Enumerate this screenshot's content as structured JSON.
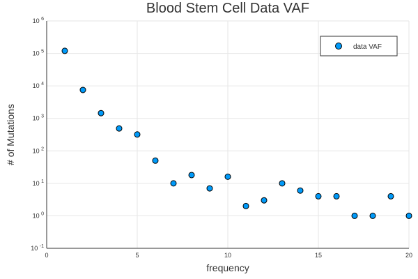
{
  "chart_data": {
    "type": "scatter",
    "title": "Blood Stem Cell Data VAF",
    "xlabel": "frequency",
    "ylabel": "# of Mutations",
    "xlim": [
      0,
      20
    ],
    "ylim": [
      0.1,
      1000000
    ],
    "yscale": "log",
    "grid": true,
    "legend_position": "top-right",
    "x_ticks": [
      "0",
      "5",
      "10",
      "15",
      "20"
    ],
    "y_ticks": [
      {
        "base": "10",
        "exp": "-1",
        "value": 0.1
      },
      {
        "base": "10",
        "exp": "0",
        "value": 1
      },
      {
        "base": "10",
        "exp": "1",
        "value": 10
      },
      {
        "base": "10",
        "exp": "2",
        "value": 100
      },
      {
        "base": "10",
        "exp": "3",
        "value": 1000
      },
      {
        "base": "10",
        "exp": "4",
        "value": 10000
      },
      {
        "base": "10",
        "exp": "5",
        "value": 100000
      },
      {
        "base": "10",
        "exp": "6",
        "value": 1000000
      }
    ],
    "series": [
      {
        "name": "data VAF",
        "color": "#009af9",
        "x": [
          1,
          2,
          3,
          4,
          5,
          6,
          7,
          8,
          9,
          10,
          11,
          12,
          13,
          14,
          15,
          16,
          17,
          18,
          19,
          20
        ],
        "y": [
          120000,
          7500,
          1450,
          490,
          320,
          50,
          10,
          18,
          7,
          16,
          2,
          3,
          10,
          6,
          4,
          4,
          1,
          1,
          4,
          1
        ]
      }
    ]
  }
}
